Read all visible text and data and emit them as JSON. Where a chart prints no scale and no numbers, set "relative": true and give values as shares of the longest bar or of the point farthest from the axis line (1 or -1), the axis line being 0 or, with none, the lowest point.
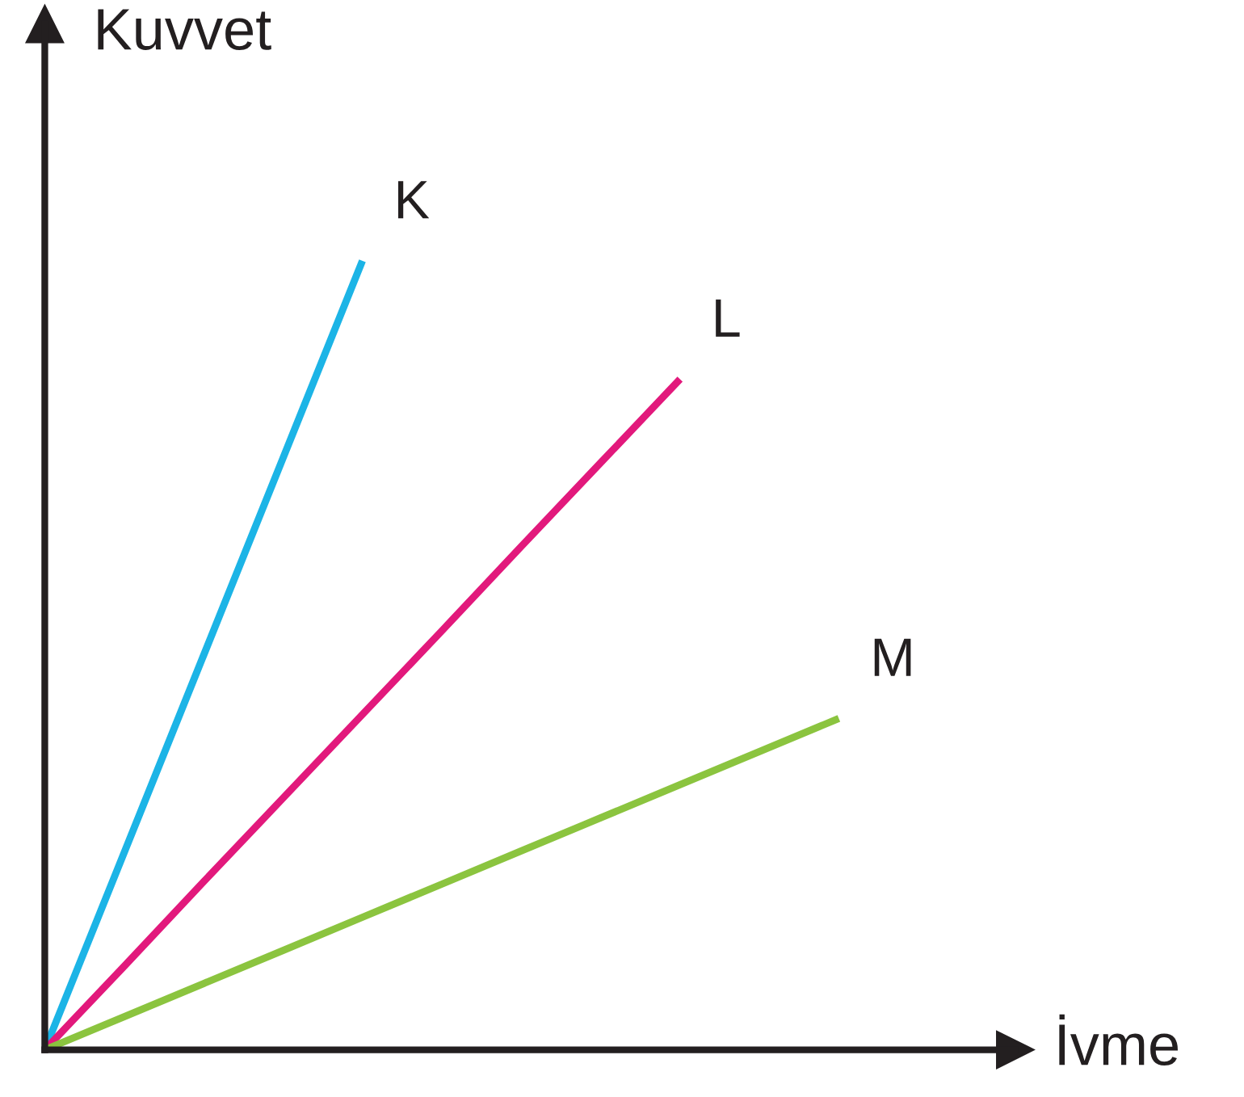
{
  "chart_data": {
    "type": "line",
    "relative": true,
    "xlabel": "İvme",
    "ylabel": "Kuvvet",
    "marker": "none",
    "line_style": "solid",
    "categories": [
      null,
      null,
      null,
      null,
      null,
      null,
      null,
      null,
      null,
      null,
      null
    ],
    "series": [
      {
        "name": "K",
        "color": "#1cb4e6",
        "values": [
          0,
          0.25,
          0.5,
          0.75,
          1,
          null,
          null,
          null,
          null,
          null,
          null
        ]
      },
      {
        "name": "L",
        "color": "#e2197c",
        "values": [
          0,
          0.106,
          0.213,
          0.319,
          0.425,
          0.531,
          0.638,
          0.744,
          0.85,
          null,
          null
        ]
      },
      {
        "name": "M",
        "color": "#8bc43f",
        "values": [
          0,
          0.042,
          0.084,
          0.126,
          0.168,
          0.21,
          0.252,
          0.294,
          0.336,
          0.378,
          0.42
        ]
      }
    ]
  }
}
